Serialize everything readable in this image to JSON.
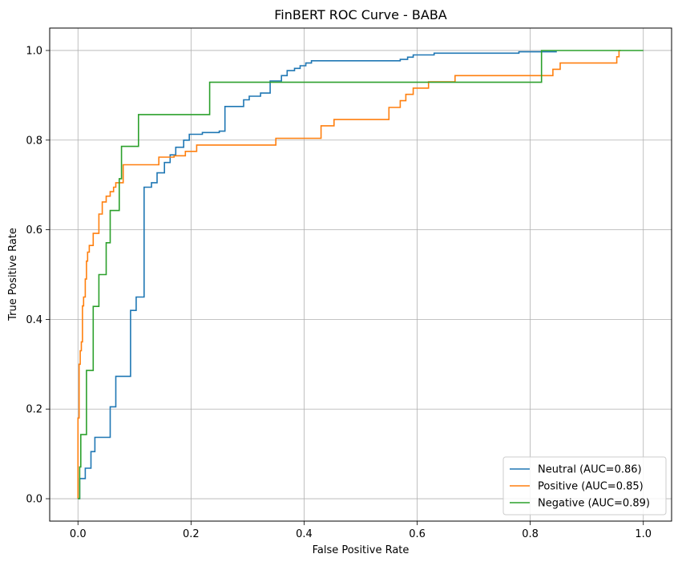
{
  "chart_data": {
    "type": "line",
    "title": "FinBERT ROC Curve - BABA",
    "xlabel": "False Positive Rate",
    "ylabel": "True Positive Rate",
    "xlim": [
      -0.05,
      1.05
    ],
    "ylim": [
      -0.05,
      1.05
    ],
    "xticks": [
      "0.0",
      "0.2",
      "0.4",
      "0.6",
      "0.8",
      "1.0"
    ],
    "yticks": [
      "0.0",
      "0.2",
      "0.4",
      "0.6",
      "0.8",
      "1.0"
    ],
    "grid": true,
    "legend_position": "lower-right",
    "series": [
      {
        "name": "Neutral (AUC=0.86)",
        "color": "#1f77b4",
        "points": [
          [
            0,
            0
          ],
          [
            0.003,
            0
          ],
          [
            0.003,
            0.045
          ],
          [
            0.013,
            0.045
          ],
          [
            0.013,
            0.068
          ],
          [
            0.023,
            0.068
          ],
          [
            0.023,
            0.105
          ],
          [
            0.03,
            0.105
          ],
          [
            0.03,
            0.137
          ],
          [
            0.057,
            0.137
          ],
          [
            0.057,
            0.205
          ],
          [
            0.067,
            0.205
          ],
          [
            0.067,
            0.273
          ],
          [
            0.093,
            0.273
          ],
          [
            0.093,
            0.42
          ],
          [
            0.103,
            0.42
          ],
          [
            0.103,
            0.45
          ],
          [
            0.117,
            0.45
          ],
          [
            0.117,
            0.695
          ],
          [
            0.13,
            0.695
          ],
          [
            0.13,
            0.705
          ],
          [
            0.14,
            0.705
          ],
          [
            0.14,
            0.727
          ],
          [
            0.153,
            0.727
          ],
          [
            0.153,
            0.75
          ],
          [
            0.163,
            0.75
          ],
          [
            0.163,
            0.767
          ],
          [
            0.173,
            0.767
          ],
          [
            0.173,
            0.784
          ],
          [
            0.187,
            0.784
          ],
          [
            0.187,
            0.8
          ],
          [
            0.197,
            0.8
          ],
          [
            0.197,
            0.813
          ],
          [
            0.22,
            0.813
          ],
          [
            0.22,
            0.817
          ],
          [
            0.25,
            0.817
          ],
          [
            0.25,
            0.82
          ],
          [
            0.26,
            0.82
          ],
          [
            0.26,
            0.875
          ],
          [
            0.293,
            0.875
          ],
          [
            0.293,
            0.89
          ],
          [
            0.303,
            0.89
          ],
          [
            0.303,
            0.898
          ],
          [
            0.323,
            0.898
          ],
          [
            0.323,
            0.905
          ],
          [
            0.34,
            0.905
          ],
          [
            0.34,
            0.932
          ],
          [
            0.36,
            0.932
          ],
          [
            0.36,
            0.944
          ],
          [
            0.37,
            0.944
          ],
          [
            0.37,
            0.955
          ],
          [
            0.383,
            0.955
          ],
          [
            0.383,
            0.96
          ],
          [
            0.393,
            0.96
          ],
          [
            0.393,
            0.966
          ],
          [
            0.403,
            0.966
          ],
          [
            0.403,
            0.972
          ],
          [
            0.413,
            0.972
          ],
          [
            0.413,
            0.977
          ],
          [
            0.57,
            0.977
          ],
          [
            0.57,
            0.98
          ],
          [
            0.583,
            0.98
          ],
          [
            0.583,
            0.985
          ],
          [
            0.593,
            0.985
          ],
          [
            0.593,
            0.99
          ],
          [
            0.63,
            0.99
          ],
          [
            0.63,
            0.994
          ],
          [
            0.78,
            0.994
          ],
          [
            0.78,
            0.997
          ],
          [
            0.847,
            0.997
          ]
        ]
      },
      {
        "name": "Positive (AUC=0.85)",
        "color": "#ff7f0e",
        "points": [
          [
            0,
            0
          ],
          [
            0,
            0.18
          ],
          [
            0.002,
            0.18
          ],
          [
            0.002,
            0.3
          ],
          [
            0.004,
            0.3
          ],
          [
            0.004,
            0.33
          ],
          [
            0.006,
            0.33
          ],
          [
            0.006,
            0.35
          ],
          [
            0.008,
            0.35
          ],
          [
            0.008,
            0.43
          ],
          [
            0.01,
            0.43
          ],
          [
            0.01,
            0.45
          ],
          [
            0.013,
            0.45
          ],
          [
            0.013,
            0.49
          ],
          [
            0.015,
            0.49
          ],
          [
            0.015,
            0.53
          ],
          [
            0.017,
            0.53
          ],
          [
            0.017,
            0.55
          ],
          [
            0.02,
            0.55
          ],
          [
            0.02,
            0.565
          ],
          [
            0.027,
            0.565
          ],
          [
            0.027,
            0.592
          ],
          [
            0.037,
            0.592
          ],
          [
            0.037,
            0.635
          ],
          [
            0.043,
            0.635
          ],
          [
            0.043,
            0.662
          ],
          [
            0.05,
            0.662
          ],
          [
            0.05,
            0.675
          ],
          [
            0.057,
            0.675
          ],
          [
            0.057,
            0.685
          ],
          [
            0.063,
            0.685
          ],
          [
            0.063,
            0.695
          ],
          [
            0.067,
            0.695
          ],
          [
            0.067,
            0.705
          ],
          [
            0.08,
            0.705
          ],
          [
            0.08,
            0.745
          ],
          [
            0.143,
            0.745
          ],
          [
            0.143,
            0.762
          ],
          [
            0.17,
            0.762
          ],
          [
            0.17,
            0.765
          ],
          [
            0.19,
            0.765
          ],
          [
            0.19,
            0.775
          ],
          [
            0.21,
            0.775
          ],
          [
            0.21,
            0.789
          ],
          [
            0.35,
            0.789
          ],
          [
            0.35,
            0.804
          ],
          [
            0.43,
            0.804
          ],
          [
            0.43,
            0.832
          ],
          [
            0.453,
            0.832
          ],
          [
            0.453,
            0.846
          ],
          [
            0.55,
            0.846
          ],
          [
            0.55,
            0.873
          ],
          [
            0.57,
            0.873
          ],
          [
            0.57,
            0.888
          ],
          [
            0.58,
            0.888
          ],
          [
            0.58,
            0.902
          ],
          [
            0.593,
            0.902
          ],
          [
            0.593,
            0.916
          ],
          [
            0.62,
            0.916
          ],
          [
            0.62,
            0.93
          ],
          [
            0.667,
            0.93
          ],
          [
            0.667,
            0.944
          ],
          [
            0.84,
            0.944
          ],
          [
            0.84,
            0.958
          ],
          [
            0.853,
            0.958
          ],
          [
            0.853,
            0.972
          ],
          [
            0.953,
            0.972
          ],
          [
            0.953,
            0.986
          ],
          [
            0.957,
            0.986
          ],
          [
            0.957,
            1.0
          ],
          [
            0.96,
            1.0
          ]
        ]
      },
      {
        "name": "Negative (AUC=0.89)",
        "color": "#2ca02c",
        "points": [
          [
            0,
            0
          ],
          [
            0.003,
            0
          ],
          [
            0.003,
            0.071
          ],
          [
            0.005,
            0.071
          ],
          [
            0.005,
            0.143
          ],
          [
            0.015,
            0.143
          ],
          [
            0.015,
            0.286
          ],
          [
            0.027,
            0.286
          ],
          [
            0.027,
            0.429
          ],
          [
            0.037,
            0.429
          ],
          [
            0.037,
            0.5
          ],
          [
            0.05,
            0.5
          ],
          [
            0.05,
            0.571
          ],
          [
            0.057,
            0.571
          ],
          [
            0.057,
            0.643
          ],
          [
            0.073,
            0.643
          ],
          [
            0.073,
            0.714
          ],
          [
            0.077,
            0.714
          ],
          [
            0.077,
            0.786
          ],
          [
            0.107,
            0.786
          ],
          [
            0.107,
            0.857
          ],
          [
            0.233,
            0.857
          ],
          [
            0.233,
            0.929
          ],
          [
            0.82,
            0.929
          ],
          [
            0.82,
            1.0
          ],
          [
            1.0,
            1.0
          ]
        ]
      }
    ]
  }
}
